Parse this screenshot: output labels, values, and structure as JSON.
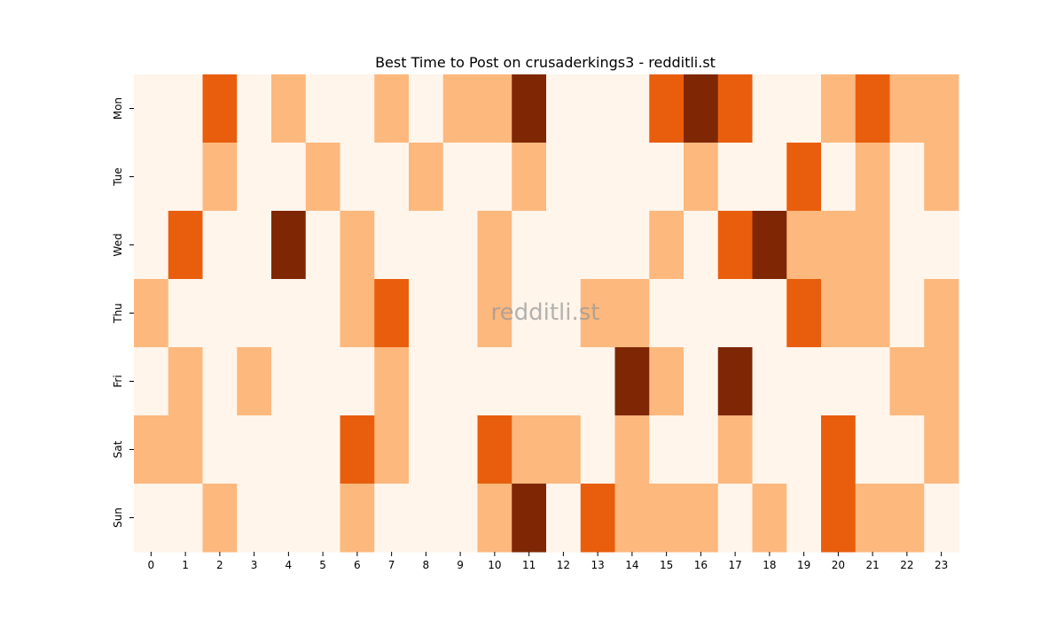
{
  "chart_data": {
    "type": "heatmap",
    "title": "Best Time to Post on crusaderkings3 - redditli.st",
    "watermark": "redditli.st",
    "xlabel": "",
    "ylabel": "",
    "x_categories": [
      "0",
      "1",
      "2",
      "3",
      "4",
      "5",
      "6",
      "7",
      "8",
      "9",
      "10",
      "11",
      "12",
      "13",
      "14",
      "15",
      "16",
      "17",
      "18",
      "19",
      "20",
      "21",
      "22",
      "23"
    ],
    "y_categories": [
      "Mon",
      "Tue",
      "Wed",
      "Thu",
      "Fri",
      "Sat",
      "Sun"
    ],
    "levels": [
      0,
      1,
      2,
      3
    ],
    "colormap": [
      "#fff5eb",
      "#fdb87d",
      "#e95e0d",
      "#7f2704"
    ],
    "values": [
      [
        0,
        0,
        2,
        0,
        1,
        0,
        0,
        1,
        0,
        1,
        1,
        3,
        0,
        0,
        0,
        2,
        3,
        2,
        0,
        0,
        1,
        2,
        1,
        1
      ],
      [
        0,
        0,
        1,
        0,
        0,
        1,
        0,
        0,
        1,
        0,
        0,
        1,
        0,
        0,
        0,
        0,
        1,
        0,
        0,
        2,
        0,
        1,
        0,
        1
      ],
      [
        0,
        2,
        0,
        0,
        3,
        0,
        1,
        0,
        0,
        0,
        1,
        0,
        0,
        0,
        0,
        1,
        0,
        2,
        3,
        1,
        1,
        1,
        0,
        0
      ],
      [
        1,
        0,
        0,
        0,
        0,
        0,
        1,
        2,
        0,
        0,
        1,
        0,
        0,
        1,
        1,
        0,
        0,
        0,
        0,
        2,
        1,
        1,
        0,
        1
      ],
      [
        0,
        1,
        0,
        1,
        0,
        0,
        0,
        1,
        0,
        0,
        0,
        0,
        0,
        0,
        3,
        1,
        0,
        3,
        0,
        0,
        0,
        0,
        1,
        1
      ],
      [
        1,
        1,
        0,
        0,
        0,
        0,
        2,
        1,
        0,
        0,
        2,
        1,
        1,
        0,
        1,
        0,
        0,
        1,
        0,
        0,
        2,
        0,
        0,
        1
      ],
      [
        0,
        0,
        1,
        0,
        0,
        0,
        1,
        0,
        0,
        0,
        1,
        3,
        0,
        2,
        1,
        1,
        1,
        0,
        1,
        0,
        2,
        1,
        1,
        0
      ]
    ],
    "grid": false,
    "legend": "none"
  }
}
